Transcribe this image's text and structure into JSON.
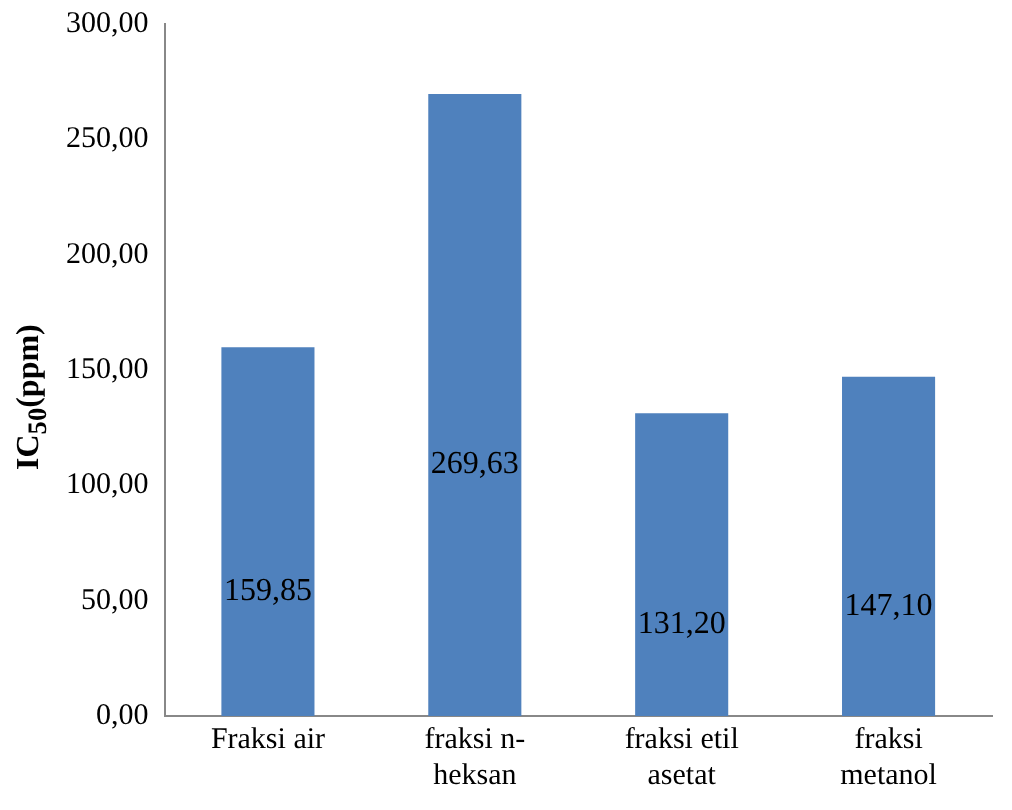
{
  "chart_data": {
    "type": "bar",
    "ylabel": "IC$_{50}$(ppm)",
    "categories": [
      "Fraksi air",
      "fraksi n-heksan",
      "fraksi etil asetat",
      "fraksi metanol"
    ],
    "values": [
      159.85,
      269.63,
      131.2,
      147.1
    ],
    "value_labels": [
      "159,85",
      "269,63",
      "131,20",
      "147,10"
    ],
    "color": "#4f81bd",
    "ylim": [
      0,
      300
    ],
    "yticks": [
      {
        "value": 0,
        "label": "0,00"
      },
      {
        "value": 50,
        "label": "50,00"
      },
      {
        "value": 100,
        "label": "100,00"
      },
      {
        "value": 150,
        "label": "150,00"
      },
      {
        "value": 200,
        "label": "200,00"
      },
      {
        "value": 250,
        "label": "250,00"
      },
      {
        "value": 300,
        "label": "300,00"
      }
    ],
    "grid": false,
    "legend": false
  }
}
